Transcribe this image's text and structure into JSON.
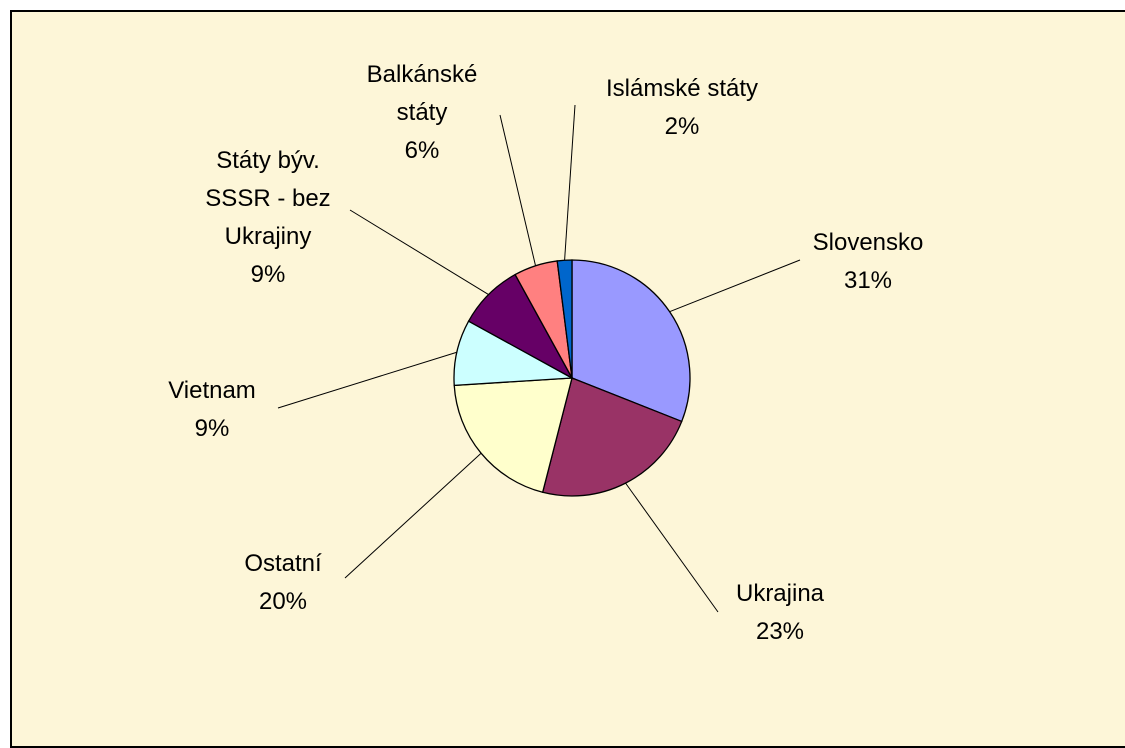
{
  "chart_data": {
    "type": "pie",
    "categories": [
      "Slovensko",
      "Ukrajina",
      "Ostatní",
      "Vietnam",
      "Státy býv. SSSR - bez Ukrajiny",
      "Balkánské státy",
      "Islámské státy"
    ],
    "values": [
      31,
      23,
      20,
      9,
      9,
      6,
      2
    ],
    "value_labels": [
      "31%",
      "23%",
      "20%",
      "9%",
      "9%",
      "6%",
      "2%"
    ],
    "colors": [
      "#9999ff",
      "#993366",
      "#ffffcc",
      "#ccffff",
      "#660066",
      "#ff8080",
      "#0066cc"
    ]
  }
}
